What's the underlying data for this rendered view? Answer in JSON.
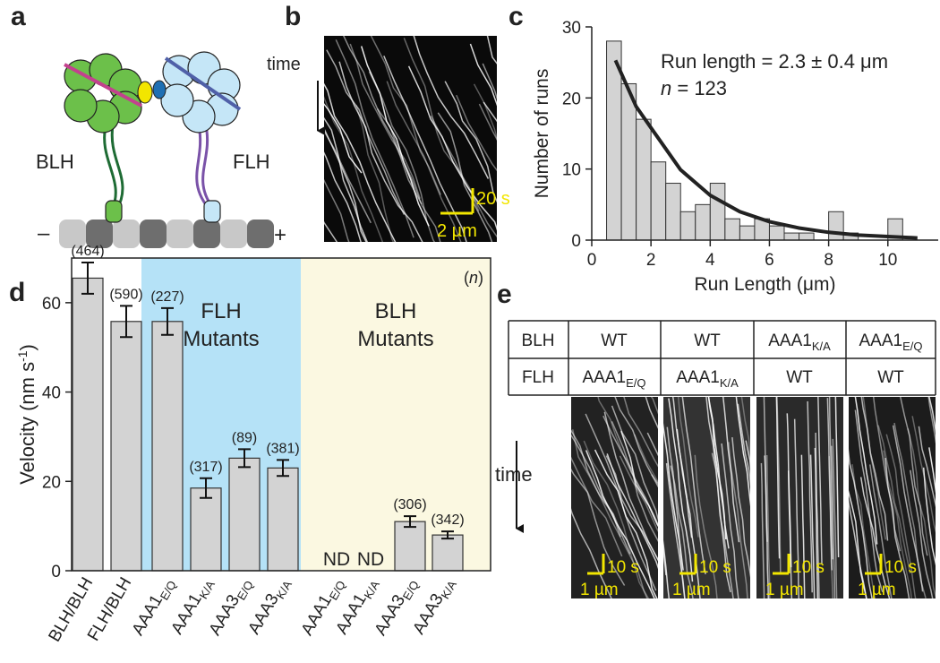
{
  "panel_labels": [
    "a",
    "b",
    "c",
    "d",
    "e"
  ],
  "diagram": {
    "left_label": "BLH",
    "right_label": "FLH",
    "minus_end": "–",
    "plus_end": "+"
  },
  "kymograph_b": {
    "time_label": "time",
    "time_scale": "20 s",
    "length_scale": "2 µm"
  },
  "chart_data": [
    {
      "type": "histogram",
      "xlabel": "Run Length (μm)",
      "ylabel": "Number of runs",
      "annotation": "Run length = 2.3 ± 0.4 μm",
      "n_annotation": [
        "n",
        " = 123"
      ],
      "bins": [
        0.5,
        1,
        1.5,
        2,
        2.5,
        3,
        3.5,
        4,
        4.5,
        5,
        5.5,
        6,
        6.5,
        7,
        7.5,
        8,
        8.5,
        9,
        9.5,
        10,
        10.5
      ],
      "values": [
        28,
        22,
        17,
        11,
        8,
        4,
        5,
        8,
        3,
        2,
        3,
        2,
        1,
        1,
        0,
        4,
        1,
        0,
        0,
        3
      ],
      "color": "#d3d3d3",
      "fit_x": [
        0.8,
        1.5,
        2,
        3,
        4,
        5,
        6,
        7,
        8,
        9,
        10,
        11
      ],
      "fit_values": [
        25.3,
        18.8,
        15.8,
        9.9,
        6.3,
        4.0,
        2.6,
        1.7,
        1.1,
        0.7,
        0.5,
        0.3
      ],
      "fit_color": "#222222",
      "xlim": [
        0,
        11.7
      ],
      "xticks": [
        0,
        2,
        4,
        6,
        8,
        10
      ],
      "ylim": [
        0,
        30
      ],
      "yticks": [
        0,
        10,
        20,
        30
      ]
    },
    {
      "type": "bar",
      "ylabel_parts": [
        "Velocity (nm s",
        "-1",
        ")"
      ],
      "categories": [
        "BLH/BLH",
        "FLH/BLH",
        "AAA1",
        "AAA1",
        "AAA3",
        "AAA3",
        "AAA1",
        "AAA1",
        "AAA3",
        "AAA3"
      ],
      "category_subscripts": [
        null,
        null,
        "E/Q",
        "K/A",
        "E/Q",
        "K/A",
        "E/Q",
        "K/A",
        "E/Q",
        "K/A"
      ],
      "values": [
        65.5,
        55.8,
        55.8,
        18.5,
        25.2,
        23,
        null,
        null,
        11,
        8
      ],
      "value_labels": [
        null,
        null,
        null,
        null,
        null,
        null,
        "ND",
        "ND",
        null,
        null
      ],
      "errors": [
        3.5,
        3.5,
        3,
        2.2,
        2,
        1.8,
        null,
        null,
        1.2,
        0.8
      ],
      "n_labels": [
        "(464)",
        "(590)",
        "(227)",
        "(317)",
        "(89)",
        "(381)",
        null,
        null,
        "(306)",
        "(342)"
      ],
      "n_note": [
        "(",
        "n",
        ")"
      ],
      "regions": [
        {
          "lines": [
            "FLH",
            "Mutants"
          ],
          "color": "#b5e2f7"
        },
        {
          "lines": [
            "BLH",
            "Mutants"
          ],
          "color": "#fbf8e1"
        }
      ],
      "color": "#d3d3d3",
      "ylim": [
        0,
        70
      ],
      "yticks": [
        0,
        20,
        40,
        60
      ]
    }
  ],
  "table_e": {
    "rows": [
      [
        {
          "text": "BLH"
        },
        {
          "text": "WT"
        },
        {
          "text": "WT"
        },
        {
          "text": "AAA1",
          "sub": "K/A"
        },
        {
          "text": "AAA1",
          "sub": "E/Q"
        }
      ],
      [
        {
          "text": "FLH"
        },
        {
          "text": "AAA1",
          "sub": "E/Q"
        },
        {
          "text": "AAA1",
          "sub": "K/A"
        },
        {
          "text": "WT"
        },
        {
          "text": "WT"
        }
      ]
    ],
    "time_label": "time",
    "time_scale": "10 s",
    "length_scale": "1 µm"
  }
}
